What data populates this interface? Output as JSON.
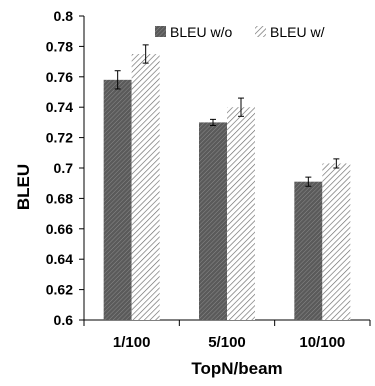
{
  "chart_data": {
    "type": "bar",
    "title": "",
    "xlabel": "TopN/beam",
    "ylabel": "BLEU",
    "categories": [
      "1/100",
      "5/100",
      "10/100"
    ],
    "ylim": [
      0.6,
      0.8
    ],
    "yticks": [
      "0.6",
      "0.62",
      "0.64",
      "0.66",
      "0.68",
      "0.7",
      "0.72",
      "0.74",
      "0.76",
      "0.78",
      "0.8"
    ],
    "grid": false,
    "legend_position": "top-right",
    "series": [
      {
        "name": "BLEU w/o",
        "values": [
          0.758,
          0.73,
          0.691
        ],
        "errors": [
          0.006,
          0.002,
          0.003
        ],
        "color": "#666666",
        "pattern": "dark-diagonal-hatch"
      },
      {
        "name": "BLEU w/",
        "values": [
          0.775,
          0.74,
          0.703
        ],
        "errors": [
          0.006,
          0.006,
          0.003
        ],
        "color": "#ffffff",
        "pattern": "light-diagonal-hatch"
      }
    ]
  }
}
